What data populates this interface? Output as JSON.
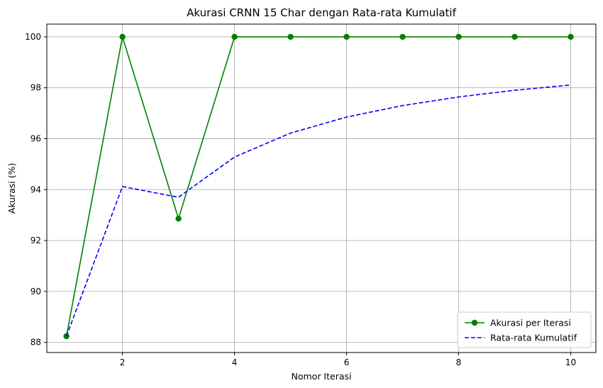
{
  "chart_data": {
    "type": "line",
    "title": "Akurasi CRNN 15 Char dengan Rata-rata Kumulatif",
    "xlabel": "Nomor Iterasi",
    "ylabel": "Akurasi (%)",
    "x": [
      1,
      2,
      3,
      4,
      5,
      6,
      7,
      8,
      9,
      10
    ],
    "xlim": [
      0.65,
      10.45
    ],
    "ylim": [
      87.6,
      100.5
    ],
    "xticks": [
      2,
      4,
      6,
      8,
      10
    ],
    "yticks": [
      88,
      90,
      92,
      94,
      96,
      98,
      100
    ],
    "xtick_labels": [
      "2",
      "4",
      "6",
      "8",
      "10"
    ],
    "ytick_labels": [
      "88",
      "90",
      "92",
      "94",
      "96",
      "98",
      "100"
    ],
    "grid": true,
    "legend_position": "lower-right",
    "series": [
      {
        "name": "Akurasi per Iterasi",
        "values": [
          88.24,
          100,
          92.86,
          100,
          100,
          100,
          100,
          100,
          100,
          100
        ],
        "color": "#008000",
        "style": "solid",
        "marker": "circle"
      },
      {
        "name": "Rata-rata Kumulatif",
        "values": [
          88.24,
          94.12,
          93.7,
          95.28,
          96.22,
          96.85,
          97.3,
          97.64,
          97.9,
          98.11
        ],
        "color": "#0000ff",
        "style": "dashed",
        "marker": "none"
      }
    ]
  }
}
